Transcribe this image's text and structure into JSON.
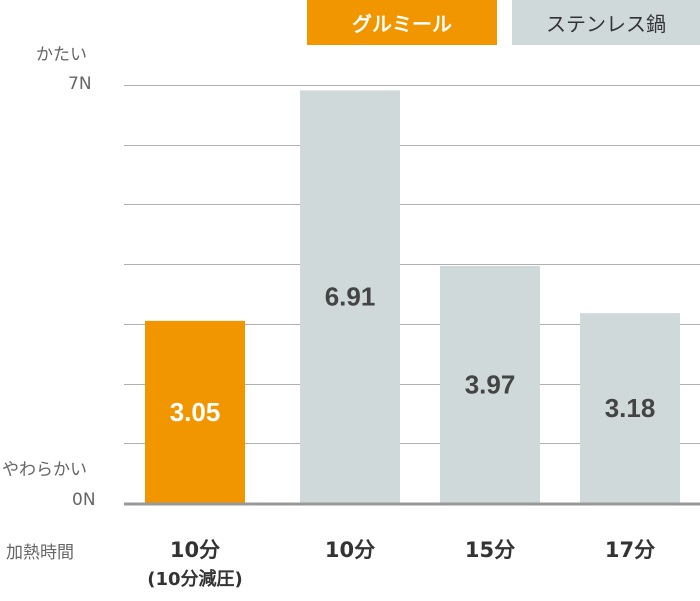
{
  "legend": {
    "gurumeal": "グルミール",
    "stainless": "ステンレス鍋"
  },
  "axis": {
    "top_label": "かたい",
    "top_value": "7N",
    "bottom_label": "やわらかい",
    "bottom_value": "0N",
    "category_title": "加熱時間"
  },
  "colors": {
    "gurumeal": "#f29600",
    "stainless": "#d0d9da",
    "grid": "#b0b0b0",
    "axis": "#999999"
  },
  "chart_data": {
    "type": "bar",
    "ylim": [
      0,
      7
    ],
    "grid": true,
    "categories": [
      {
        "line1": "10分",
        "line2": "(10分減圧)"
      },
      {
        "line1": "10分",
        "line2": ""
      },
      {
        "line1": "15分",
        "line2": ""
      },
      {
        "line1": "17分",
        "line2": ""
      }
    ],
    "values": [
      3.05,
      6.91,
      3.97,
      3.18
    ],
    "labels": [
      "3.05",
      "6.91",
      "3.97",
      "3.18"
    ],
    "series_of_bar": [
      "gurumeal",
      "stainless",
      "stainless",
      "stainless"
    ]
  }
}
